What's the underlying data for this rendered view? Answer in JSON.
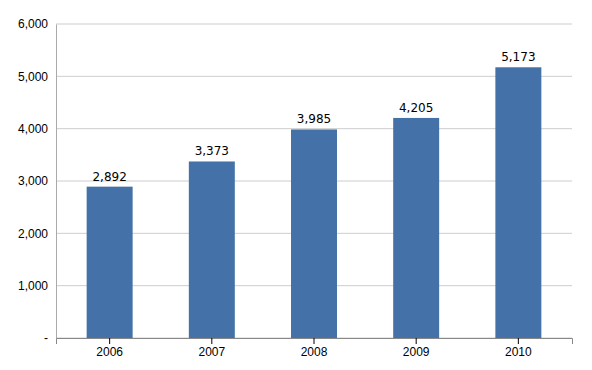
{
  "chart_data": {
    "type": "bar",
    "categories": [
      "2006",
      "2007",
      "2008",
      "2009",
      "2010"
    ],
    "values": [
      2892,
      3373,
      3985,
      4205,
      5173
    ],
    "value_labels": [
      "2,892",
      "3,373",
      "3,985",
      "4,205",
      "5,173"
    ],
    "data_labels": true,
    "color": "#4472a8",
    "ylim": [
      0,
      6000
    ],
    "yticks": [
      {
        "value": 0,
        "label": "-"
      },
      {
        "value": 1000,
        "label": "1,000"
      },
      {
        "value": 2000,
        "label": "2,000"
      },
      {
        "value": 3000,
        "label": "3,000"
      },
      {
        "value": 4000,
        "label": "4,000"
      },
      {
        "value": 5000,
        "label": "5,000"
      },
      {
        "value": 6000,
        "label": "6,000"
      }
    ],
    "grid": true
  }
}
